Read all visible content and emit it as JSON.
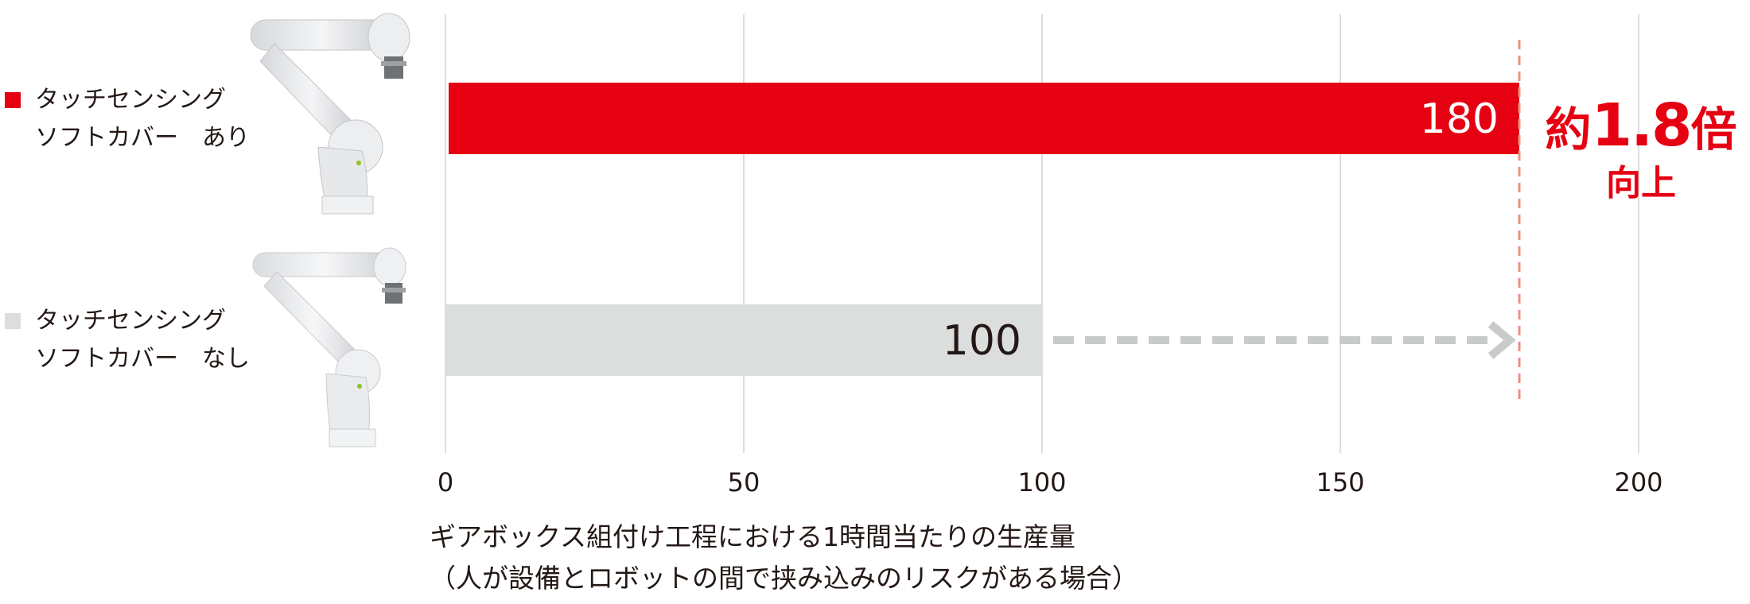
{
  "chart_data": {
    "type": "bar",
    "orientation": "horizontal",
    "categories": [
      "タッチセンシング ソフトカバー あり",
      "タッチセンシング ソフトカバー なし"
    ],
    "series": [
      {
        "values": [
          180,
          100
        ],
        "colors": [
          "#e50012",
          "#dcdddd"
        ]
      }
    ],
    "data_labels": [
      "180",
      "100"
    ],
    "xlim": [
      0,
      200
    ],
    "xticks": [
      0,
      50,
      100,
      150,
      200
    ],
    "xtick_labels": [
      "0",
      "50",
      "100",
      "150",
      "200"
    ],
    "grid": true,
    "reference_line": 180,
    "xlabel_lines": [
      "ギアボックス組付け工程における1時間当たりの生産量",
      "（人が設備とロボットの間で挟み込みのリスクがある場合）"
    ],
    "annotation": {
      "prefix": "約",
      "value": "1.8",
      "suffix": "倍",
      "sub": "向上"
    }
  },
  "legend": [
    {
      "line1": "タッチセンシング",
      "line2": "ソフトカバー　あり",
      "color": "#e50012"
    },
    {
      "line1": "タッチセンシング",
      "line2": "ソフトカバー　なし",
      "color": "#dcdddd"
    }
  ],
  "colors": {
    "accent": "#e50012",
    "neutral_bar": "#dcdddd",
    "arrow": "#c9caca",
    "reference": "#f0907e",
    "grid": "#dcdddd"
  },
  "images": [
    "robot-arm-with-cover",
    "robot-arm-without-cover"
  ]
}
